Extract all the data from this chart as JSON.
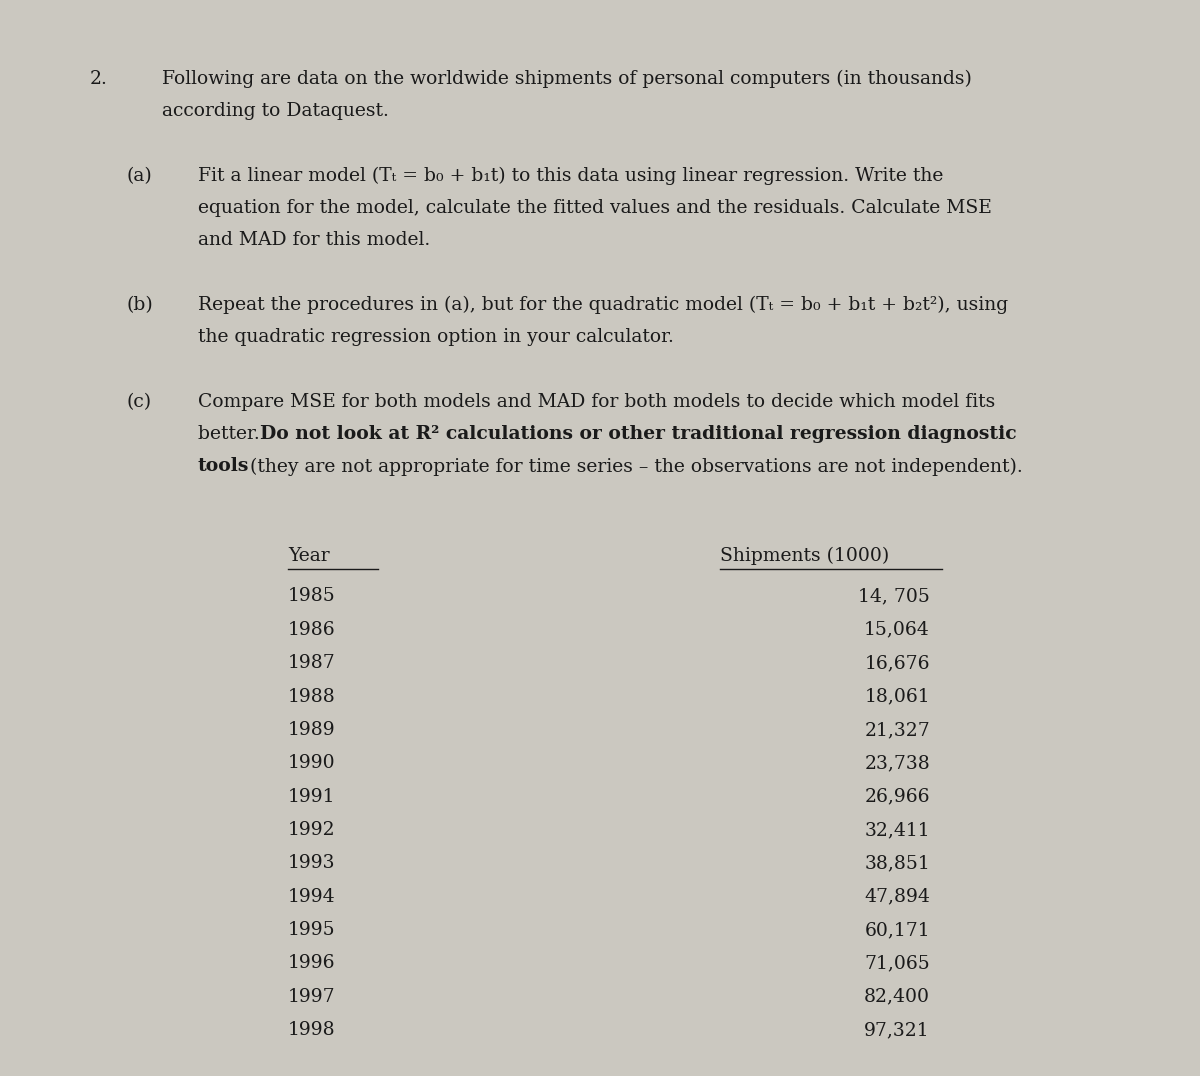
{
  "background_color": "#cbc8c0",
  "text_color": "#1a1a1a",
  "font_family": "DejaVu Serif",
  "fig_width": 12.0,
  "fig_height": 10.76,
  "problem_number": "2.",
  "intro_line1": "Following are data on the worldwide shipments of personal computers (in thousands)",
  "intro_line2": "according to Dataquest.",
  "part_a_label": "(a)",
  "part_a_line1": "Fit a linear model (Tₜ = b₀ + b₁t) to this data using linear regression. Write the",
  "part_a_line2": "equation for the model, calculate the fitted values and the residuals. Calculate MSE",
  "part_a_line3": "and MAD for this model.",
  "part_b_label": "(b)",
  "part_b_line1": "Repeat the procedures in (a), but for the quadratic model (Tₜ = b₀ + b₁t + b₂t²), using",
  "part_b_line2": "the quadratic regression option in your calculator.",
  "part_c_label": "(c)",
  "part_c_line1": "Compare MSE for both models and MAD for both models to decide which model fits",
  "part_c_line2_normal": "better. ",
  "part_c_line2_bold": "Do not look at R² calculations or other traditional regression diagnostic",
  "part_c_line3_bold": "tools",
  "part_c_line3_normal": " (they are not appropriate for time series – the observations are not independent).",
  "table_header_year": "Year",
  "table_header_shipments": "Shipments (1000)",
  "years": [
    "1985",
    "1986",
    "1987",
    "1988",
    "1989",
    "1990",
    "1991",
    "1992",
    "1993",
    "1994",
    "1995",
    "1996",
    "1997",
    "1998"
  ],
  "shipments": [
    "14, 705",
    "15,064",
    "16,676",
    "18,061",
    "21,327",
    "23,738",
    "26,966",
    "32,411",
    "38,851",
    "47,894",
    "60,171",
    "71,065",
    "82,400",
    "97,321"
  ],
  "fontsize_main": 13.5,
  "fontsize_table": 13.5
}
